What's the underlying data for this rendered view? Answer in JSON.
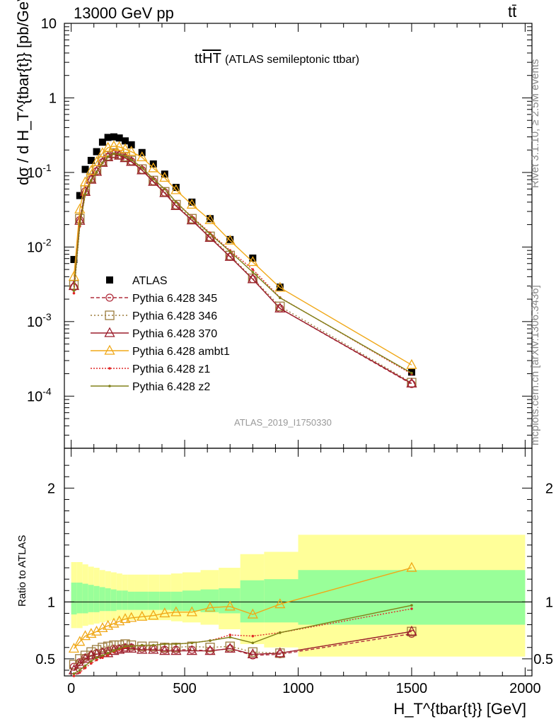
{
  "header": {
    "left": "13000 GeV pp",
    "right": "tt̄"
  },
  "side_labels": {
    "upper": "Rivet 3.1.10, ≥ 2.5M events",
    "lower": "mcplots.cern.ch [arXiv:1306.3436]"
  },
  "chart_data": [
    {
      "type": "scatter",
      "panel": "main",
      "title_main": "tt",
      "title_overline": "HT",
      "title_sub": "(ATLAS semileptonic ttbar)",
      "analysis_tag": "ATLAS_2019_I1750330",
      "ylabel": "dσ / d H_T^{tbar{t}} [pb/GeV]",
      "yscale": "log",
      "ylim": [
        2e-05,
        10
      ],
      "xlim": [
        -30,
        2030
      ],
      "yticks": [
        "10^-4",
        "10^-3",
        "10^-2",
        "10^-1",
        "1",
        "10"
      ],
      "legend_position": "bottom-left",
      "x": [
        12,
        38,
        62,
        88,
        112,
        138,
        162,
        188,
        212,
        238,
        265,
        312,
        362,
        412,
        462,
        532,
        612,
        700,
        800,
        920,
        1500
      ],
      "series": [
        {
          "name": "ATLAS",
          "color": "#000000",
          "marker": "square",
          "values": [
            0.0068,
            0.049,
            0.11,
            0.145,
            0.19,
            0.255,
            0.295,
            0.3,
            0.29,
            0.265,
            0.235,
            0.185,
            0.13,
            0.095,
            0.063,
            0.04,
            0.024,
            0.0126,
            0.0071,
            0.0029,
            0.00021
          ]
        },
        {
          "name": "Pythia 6.428 345",
          "color": "#b02d3c",
          "marker": "circle",
          "dash": "5,3",
          "values": [
            0.0029,
            0.023,
            0.056,
            0.081,
            0.104,
            0.137,
            0.162,
            0.178,
            0.17,
            0.158,
            0.141,
            0.108,
            0.076,
            0.054,
            0.036,
            0.023,
            0.0134,
            0.0074,
            0.0037,
            0.0015,
            0.000145
          ]
        },
        {
          "name": "Pythia 6.428 346",
          "color": "#9b7b3c",
          "marker": "square-open",
          "dash": "2,3",
          "values": [
            0.0031,
            0.024,
            0.058,
            0.084,
            0.108,
            0.142,
            0.167,
            0.182,
            0.174,
            0.163,
            0.144,
            0.111,
            0.078,
            0.055,
            0.037,
            0.024,
            0.0139,
            0.0077,
            0.0038,
            0.0016,
            0.000152
          ]
        },
        {
          "name": "Pythia 6.428 370",
          "color": "#9b1e2c",
          "marker": "triangle",
          "dash": "",
          "values": [
            0.003,
            0.0225,
            0.055,
            0.08,
            0.102,
            0.135,
            0.16,
            0.176,
            0.168,
            0.156,
            0.139,
            0.107,
            0.075,
            0.053,
            0.0355,
            0.0228,
            0.0133,
            0.0074,
            0.0037,
            0.0015,
            0.000148
          ]
        },
        {
          "name": "Pythia 6.428 ambt1",
          "color": "#f0a818",
          "marker": "triangle",
          "dash": "",
          "values": [
            0.004,
            0.032,
            0.074,
            0.105,
            0.138,
            0.182,
            0.215,
            0.225,
            0.22,
            0.205,
            0.19,
            0.16,
            0.114,
            0.085,
            0.058,
            0.037,
            0.023,
            0.0122,
            0.0063,
            0.00285,
            0.000262
          ]
        },
        {
          "name": "Pythia 6.428 z1",
          "color": "#e02828",
          "marker": "dot",
          "dash": "2,2",
          "values": [
            0.0024,
            0.019,
            0.05,
            0.077,
            0.1,
            0.134,
            0.162,
            0.178,
            0.174,
            0.164,
            0.148,
            0.117,
            0.082,
            0.06,
            0.04,
            0.0255,
            0.0155,
            0.009,
            0.005,
            0.0021,
            0.000198
          ]
        },
        {
          "name": "Pythia 6.428 z2",
          "color": "#808018",
          "marker": "dot",
          "dash": "",
          "values": [
            0.0026,
            0.02,
            0.051,
            0.078,
            0.101,
            0.135,
            0.163,
            0.179,
            0.175,
            0.165,
            0.148,
            0.116,
            0.082,
            0.06,
            0.04,
            0.025,
            0.015,
            0.0087,
            0.0046,
            0.00208,
            0.000204
          ]
        }
      ]
    },
    {
      "type": "line",
      "panel": "ratio",
      "ylabel": "Ratio to ATLAS",
      "xlabel": "H_T^{tbar{t}} [GeV]",
      "ylim": [
        0.35,
        2.35
      ],
      "xlim": [
        -30,
        2030
      ],
      "xticks": [
        "0",
        "500",
        "1000",
        "1500",
        "2000"
      ],
      "yticks": [
        "0.5",
        "1",
        "2"
      ],
      "x": [
        12,
        38,
        62,
        88,
        112,
        138,
        162,
        188,
        212,
        238,
        265,
        312,
        362,
        412,
        462,
        532,
        612,
        700,
        800,
        920,
        1500
      ],
      "bin_edges": [
        0,
        25,
        50,
        75,
        100,
        125,
        150,
        175,
        200,
        225,
        250,
        280,
        340,
        390,
        440,
        490,
        570,
        650,
        745,
        850,
        1000,
        2000
      ],
      "band_inner_up": [
        1.17,
        1.17,
        1.16,
        1.15,
        1.14,
        1.13,
        1.12,
        1.11,
        1.1,
        1.1,
        1.09,
        1.09,
        1.09,
        1.09,
        1.09,
        1.1,
        1.11,
        1.12,
        1.19,
        1.2,
        1.28
      ],
      "band_inner_down": [
        0.89,
        0.9,
        0.9,
        0.91,
        0.91,
        0.92,
        0.92,
        0.92,
        0.93,
        0.93,
        0.93,
        0.93,
        0.93,
        0.93,
        0.92,
        0.92,
        0.91,
        0.9,
        0.82,
        0.82,
        0.8
      ],
      "band_outer_up": [
        1.35,
        1.35,
        1.33,
        1.31,
        1.3,
        1.28,
        1.27,
        1.26,
        1.25,
        1.24,
        1.24,
        1.24,
        1.24,
        1.24,
        1.25,
        1.26,
        1.28,
        1.3,
        1.42,
        1.44,
        1.59
      ],
      "band_outer_down": [
        0.77,
        0.77,
        0.79,
        0.8,
        0.81,
        0.82,
        0.83,
        0.84,
        0.84,
        0.84,
        0.84,
        0.84,
        0.84,
        0.84,
        0.83,
        0.82,
        0.8,
        0.76,
        0.63,
        0.6,
        0.52
      ],
      "series": [
        {
          "name": "Pythia 6.428 345",
          "color": "#b02d3c",
          "values": [
            0.43,
            0.47,
            0.51,
            0.53,
            0.55,
            0.56,
            0.57,
            0.59,
            0.59,
            0.6,
            0.6,
            0.59,
            0.59,
            0.58,
            0.58,
            0.58,
            0.57,
            0.59,
            0.53,
            0.54,
            0.72
          ]
        },
        {
          "name": "Pythia 6.428 346",
          "color": "#9b7b3c",
          "values": [
            0.45,
            0.5,
            0.53,
            0.56,
            0.58,
            0.6,
            0.61,
            0.62,
            0.62,
            0.63,
            0.62,
            0.61,
            0.61,
            0.6,
            0.6,
            0.61,
            0.6,
            0.61,
            0.56,
            0.55,
            0.74
          ]
        },
        {
          "name": "Pythia 6.428 370",
          "color": "#9b1e2c",
          "values": [
            0.4,
            0.45,
            0.5,
            0.53,
            0.54,
            0.55,
            0.55,
            0.57,
            0.58,
            0.59,
            0.59,
            0.58,
            0.58,
            0.57,
            0.57,
            0.57,
            0.57,
            0.59,
            0.54,
            0.55,
            0.74
          ]
        },
        {
          "name": "Pythia 6.428 ambt1",
          "color": "#f0a818",
          "values": [
            0.59,
            0.65,
            0.7,
            0.72,
            0.74,
            0.77,
            0.79,
            0.81,
            0.83,
            0.85,
            0.86,
            0.87,
            0.88,
            0.9,
            0.91,
            0.91,
            0.95,
            0.96,
            0.89,
            0.98,
            1.3
          ]
        },
        {
          "name": "Pythia 6.428 z1",
          "color": "#e02828",
          "values": [
            0.35,
            0.38,
            0.42,
            0.46,
            0.49,
            0.51,
            0.53,
            0.56,
            0.58,
            0.6,
            0.61,
            0.62,
            0.62,
            0.63,
            0.63,
            0.64,
            0.66,
            0.71,
            0.7,
            0.73,
            0.94
          ]
        },
        {
          "name": "Pythia 6.428 z2",
          "color": "#808018",
          "values": [
            0.37,
            0.4,
            0.44,
            0.48,
            0.51,
            0.53,
            0.55,
            0.57,
            0.59,
            0.61,
            0.61,
            0.62,
            0.62,
            0.63,
            0.63,
            0.64,
            0.66,
            0.69,
            0.64,
            0.73,
            0.97
          ]
        }
      ]
    }
  ]
}
